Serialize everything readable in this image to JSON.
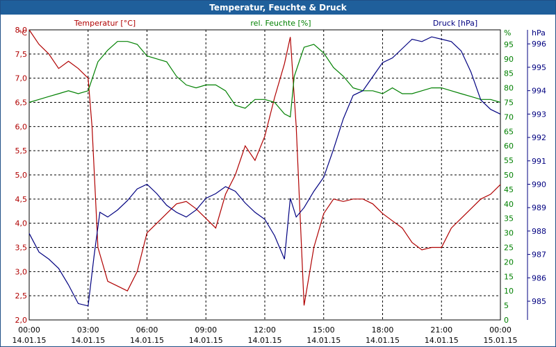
{
  "chart_data": {
    "type": "line",
    "title": "Temperatur, Feuchte & Druck",
    "legend": [
      {
        "label": "Temperatur [°C]",
        "color": "#b00000"
      },
      {
        "label": "rel. Feuchte [%]",
        "color": "#008000"
      },
      {
        "label": "Druck [hPa]",
        "color": "#000080"
      }
    ],
    "unit_labels": {
      "left": "°C",
      "right1": "%",
      "right2": "hPa"
    },
    "x_ticks": [
      {
        "time": "00:00",
        "date": "14.01.15"
      },
      {
        "time": "03:00",
        "date": "14.01.15"
      },
      {
        "time": "06:00",
        "date": "14.01.15"
      },
      {
        "time": "09:00",
        "date": "14.01.15"
      },
      {
        "time": "12:00",
        "date": "14.01.15"
      },
      {
        "time": "15:00",
        "date": "14.01.15"
      },
      {
        "time": "18:00",
        "date": "14.01.15"
      },
      {
        "time": "21:00",
        "date": "14.01.15"
      },
      {
        "time": "00:00",
        "date": "15.01.15"
      }
    ],
    "xlim": [
      0,
      24
    ],
    "grid": true,
    "axes": {
      "temp": {
        "min": 2.0,
        "max": 8.0,
        "ticks": [
          "2,0",
          "2,5",
          "3,0",
          "3,5",
          "4,0",
          "4,5",
          "5,0",
          "5,5",
          "6,0",
          "6,5",
          "7,0",
          "7,5",
          "8,0"
        ],
        "color": "#b00000"
      },
      "hum": {
        "min": 0,
        "max": 100,
        "ticks": [
          "0",
          "5",
          "10",
          "15",
          "20",
          "25",
          "30",
          "35",
          "40",
          "45",
          "50",
          "55",
          "60",
          "65",
          "70",
          "75",
          "80",
          "85",
          "90",
          "95"
        ],
        "color": "#008000"
      },
      "press": {
        "min": 984.2,
        "max": 996.6,
        "ticks": [
          "985",
          "986",
          "987",
          "988",
          "989",
          "990",
          "991",
          "992",
          "993",
          "994",
          "995",
          "996"
        ],
        "color": "#000080"
      }
    },
    "series": [
      {
        "name": "Temperatur [°C]",
        "color": "#b00000",
        "axis": "temp",
        "x": [
          0,
          0.5,
          1,
          1.5,
          2,
          2.5,
          3,
          3.2,
          3.5,
          4,
          4.5,
          5,
          5.5,
          6,
          6.5,
          7,
          7.5,
          8,
          8.5,
          9,
          9.5,
          10,
          10.5,
          11,
          11.5,
          12,
          12.5,
          13,
          13.3,
          13.6,
          14,
          14.5,
          15,
          15.5,
          16,
          16.5,
          17,
          17.5,
          18,
          18.5,
          19,
          19.5,
          20,
          20.5,
          21,
          21.5,
          22,
          22.5,
          23,
          23.5,
          24
        ],
        "y": [
          8.0,
          7.7,
          7.5,
          7.2,
          7.35,
          7.2,
          7.0,
          6.0,
          3.5,
          2.8,
          2.7,
          2.6,
          3.0,
          3.8,
          4.0,
          4.2,
          4.4,
          4.45,
          4.3,
          4.1,
          3.9,
          4.6,
          5.0,
          5.6,
          5.3,
          5.8,
          6.6,
          7.3,
          7.85,
          6.0,
          2.3,
          3.5,
          4.2,
          4.5,
          4.45,
          4.5,
          4.5,
          4.4,
          4.2,
          4.05,
          3.9,
          3.6,
          3.45,
          3.5,
          3.5,
          3.9,
          4.1,
          4.3,
          4.5,
          4.6,
          4.8
        ]
      },
      {
        "name": "rel. Feuchte [%]",
        "color": "#008000",
        "axis": "hum",
        "x": [
          0,
          0.5,
          1,
          1.5,
          2,
          2.5,
          3,
          3.5,
          4,
          4.5,
          5,
          5.5,
          6,
          6.5,
          7,
          7.5,
          8,
          8.5,
          9,
          9.5,
          10,
          10.5,
          11,
          11.5,
          12,
          12.5,
          13,
          13.3,
          13.5,
          14,
          14.5,
          15,
          15.5,
          16,
          16.5,
          17,
          17.5,
          18,
          18.5,
          19,
          19.5,
          20,
          20.5,
          21,
          21.5,
          22,
          22.5,
          23,
          23.5,
          24
        ],
        "y": [
          75,
          76,
          77,
          78,
          79,
          78,
          79,
          89,
          93,
          96,
          96,
          95,
          91,
          90,
          89,
          84,
          81,
          80,
          81,
          81,
          79,
          74,
          73,
          76,
          76,
          75,
          71,
          70,
          84,
          94,
          95,
          92,
          87,
          84,
          80,
          79,
          79,
          78,
          80,
          78,
          78,
          79,
          80,
          80,
          79,
          78,
          77,
          76,
          76,
          75
        ]
      },
      {
        "name": "Druck [hPa]",
        "color": "#000080",
        "axis": "press",
        "x": [
          0,
          0.5,
          1,
          1.5,
          2,
          2.5,
          3,
          3.3,
          3.6,
          4,
          4.5,
          5,
          5.5,
          6,
          6.5,
          7,
          7.5,
          8,
          8.5,
          9,
          9.5,
          10,
          10.5,
          11,
          11.5,
          12,
          12.5,
          13,
          13.3,
          13.6,
          14,
          14.5,
          15,
          15.5,
          16,
          16.5,
          17,
          17.5,
          18,
          18.5,
          19,
          19.5,
          20,
          20.5,
          21,
          21.5,
          22,
          22.5,
          23,
          23.5,
          24
        ],
        "y": [
          987.9,
          987.1,
          986.8,
          986.4,
          985.7,
          984.9,
          984.8,
          986.9,
          988.8,
          988.6,
          988.9,
          989.3,
          989.8,
          990.0,
          989.6,
          989.1,
          988.8,
          988.6,
          988.9,
          989.4,
          989.6,
          989.9,
          989.7,
          989.2,
          988.8,
          988.5,
          987.8,
          986.8,
          989.4,
          988.6,
          989.0,
          989.7,
          990.3,
          991.5,
          992.8,
          993.8,
          994.0,
          994.6,
          995.2,
          995.4,
          995.8,
          996.2,
          996.1,
          996.3,
          996.2,
          996.1,
          995.7,
          994.8,
          993.6,
          993.2,
          993.0
        ]
      }
    ]
  }
}
